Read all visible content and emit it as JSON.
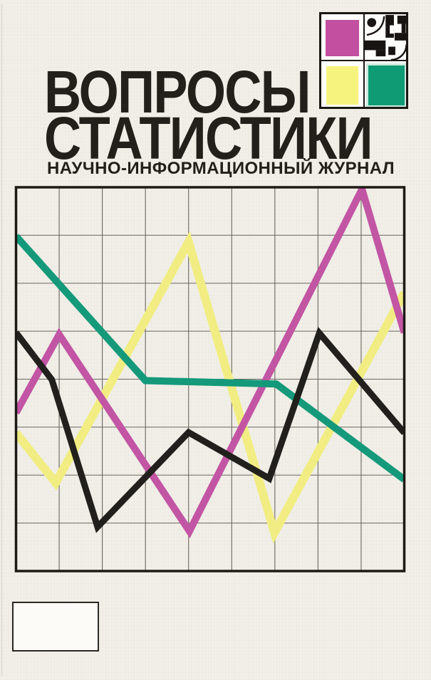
{
  "publication": {
    "title_line1": "ВОПРОСЫ",
    "title_line2": "СТАТИСТИКИ",
    "subtitle": "НАУЧНО-ИНФОРМАЦИОННЫЙ ЖУРНАЛ"
  },
  "logo": {
    "squares": [
      {
        "name": "magenta-square",
        "color": "#c14fa0"
      },
      {
        "name": "abstract-bw-art",
        "color": "#ffffff"
      },
      {
        "name": "yellow-square",
        "color": "#f7f37f"
      },
      {
        "name": "green-square",
        "color": "#0f9b73"
      }
    ],
    "magenta": "#c24fa0",
    "yellow": "#f7f37f",
    "green": "#0f9b73",
    "ink": "#171411"
  },
  "chart": {
    "type": "line",
    "title": "",
    "xlabel": "",
    "ylabel": "",
    "grid": {
      "cols": 9,
      "rows": 8,
      "grid_on": true
    },
    "frame_color": "#1c1a15",
    "gridline_color": "#4b463e",
    "series": [
      {
        "name": "yellow-line",
        "color": "#f2ed82",
        "width": 12,
        "points": [
          [
            0,
            5.12
          ],
          [
            0.92,
            6.16
          ],
          [
            4.0,
            1.14
          ],
          [
            5.99,
            7.2
          ],
          [
            9,
            2.2
          ]
        ]
      },
      {
        "name": "magenta-line",
        "color": "#c255a4",
        "width": 10,
        "points": [
          [
            0,
            4.7
          ],
          [
            1.0,
            3.07
          ],
          [
            4.02,
            7.17
          ],
          [
            8.02,
            0.04
          ],
          [
            9,
            3.03
          ]
        ]
      },
      {
        "name": "green-line",
        "color": "#14997a",
        "width": 10,
        "points": [
          [
            0,
            1.02
          ],
          [
            3.0,
            4.03
          ],
          [
            6.03,
            4.1
          ],
          [
            9,
            6.09
          ]
        ]
      },
      {
        "name": "black-line",
        "color": "#21201c",
        "width": 9,
        "points": [
          [
            0,
            3.03
          ],
          [
            0.83,
            4.01
          ],
          [
            1.89,
            7.08
          ],
          [
            4.0,
            5.11
          ],
          [
            5.87,
            6.07
          ],
          [
            7.03,
            3.04
          ],
          [
            9,
            5.12
          ]
        ]
      }
    ]
  }
}
